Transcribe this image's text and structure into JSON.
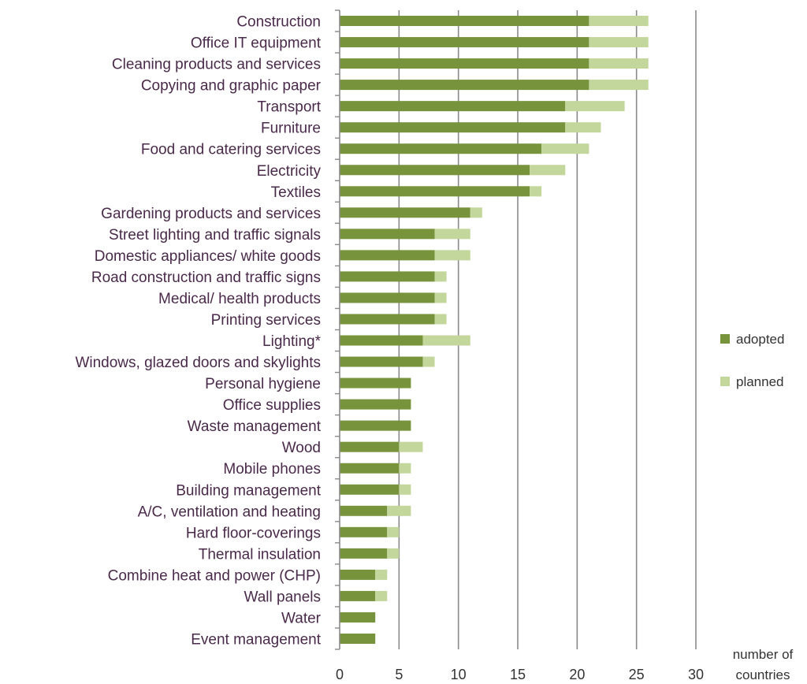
{
  "chart_data": {
    "type": "bar",
    "orientation": "horizontal",
    "stacked": true,
    "title": "",
    "xlabel": "number of countries",
    "xlabel_lines": [
      "number of",
      "countries"
    ],
    "ylabel": "",
    "xlim": [
      0,
      30
    ],
    "xticks": [
      0,
      5,
      10,
      15,
      20,
      25,
      30
    ],
    "grid": "vertical",
    "legend_position": "right",
    "categories": [
      "Construction",
      "Office IT equipment",
      "Cleaning products and services",
      "Copying and graphic paper",
      "Transport",
      "Furniture",
      "Food and catering services",
      "Electricity",
      "Textiles",
      "Gardening products and services",
      "Street lighting and traffic signals",
      "Domestic appliances/ white goods",
      "Road construction and traffic signs",
      "Medical/ health products",
      "Printing services",
      "Lighting*",
      "Windows, glazed doors and skylights",
      "Personal hygiene",
      "Office supplies",
      "Waste management",
      "Wood",
      "Mobile phones",
      "Building management",
      "A/C, ventilation and heating",
      "Hard floor-coverings",
      "Thermal insulation",
      "Combine heat and power (CHP)",
      "Wall panels",
      "Water",
      "Event management"
    ],
    "series": [
      {
        "name": "adopted",
        "color": "#77933c",
        "values": [
          21,
          21,
          21,
          21,
          19,
          19,
          17,
          16,
          16,
          11,
          8,
          8,
          8,
          8,
          8,
          7,
          7,
          6,
          6,
          6,
          5,
          5,
          5,
          4,
          4,
          4,
          3,
          3,
          3,
          3
        ]
      },
      {
        "name": "planned",
        "color": "#c3d69b",
        "values": [
          5,
          5,
          5,
          5,
          5,
          3,
          4,
          3,
          1,
          1,
          3,
          3,
          1,
          1,
          1,
          4,
          1,
          0,
          0,
          0,
          2,
          1,
          1,
          2,
          1,
          1,
          1,
          1,
          0,
          0
        ]
      }
    ]
  }
}
